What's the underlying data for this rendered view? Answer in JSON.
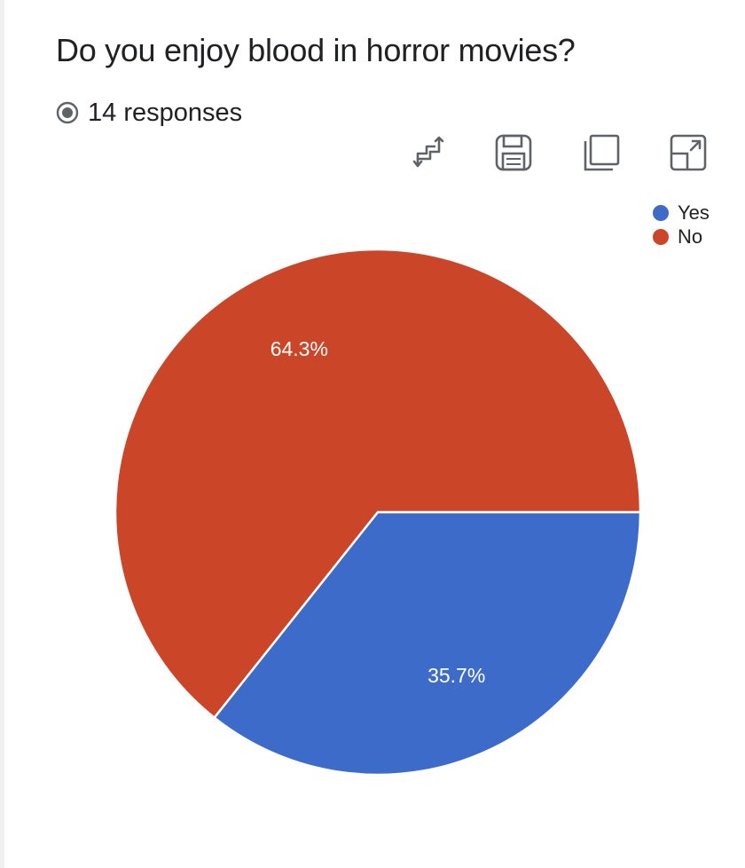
{
  "form": {
    "question": "Do you enjoy blood in horror movies?",
    "responses": "14 responses"
  },
  "toolbar": {
    "icons": [
      "swap-axes-icon",
      "save-icon",
      "copy-icon",
      "open-in-new-icon"
    ]
  },
  "colors": {
    "yes": "#3d6bc9",
    "no": "#cb4528",
    "slice_border": "#ffffff",
    "label_text": "#ffffff"
  },
  "chart_data": {
    "type": "pie",
    "title": "Do you enjoy blood in horror movies?",
    "categories": [
      "Yes",
      "No"
    ],
    "values": [
      35.7,
      64.3
    ],
    "labels": [
      "35.7%",
      "64.3%"
    ],
    "legend": "top-right"
  }
}
